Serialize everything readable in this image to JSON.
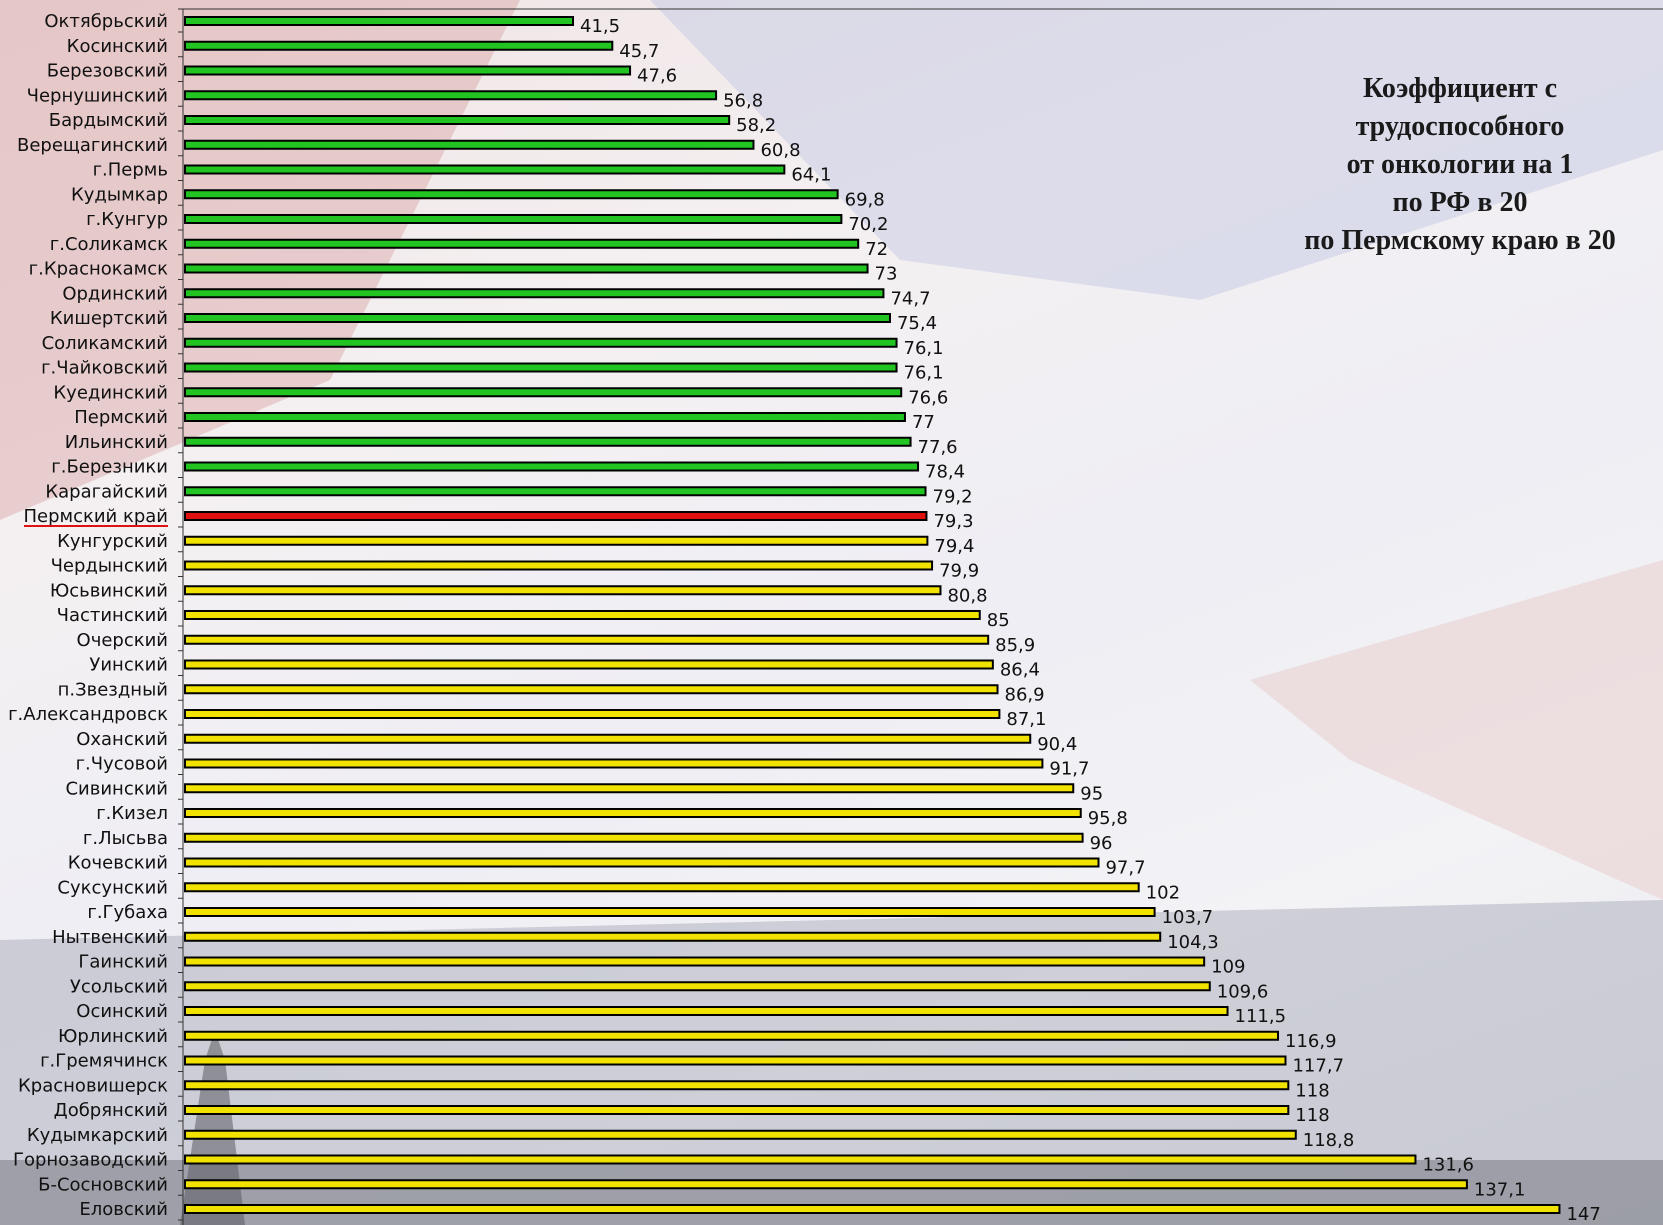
{
  "title_lines": [
    "Коэффициент с",
    "трудоспособного",
    "от онкологии на 1",
    "по РФ в 20",
    "по Пермскому краю в 20"
  ],
  "colors": {
    "normal_low": "#22c422",
    "region_total": "#e01010",
    "normal_high": "#f2e200",
    "bar_outline": "#000000"
  },
  "chart_data": {
    "type": "bar",
    "orientation": "horizontal",
    "categories": [
      "Октябрьский",
      "Косинский",
      "Березовский",
      "Чернушинский",
      "Бардымский",
      "Верещагинский",
      "г.Пермь",
      "Кудымкар",
      "г.Кунгур",
      "г.Соликамск",
      "г.Краснокамск",
      "Ординский",
      "Кишертский",
      "Соликамский",
      "г.Чайковский",
      "Куединский",
      "Пермский",
      "Ильинский",
      "г.Березники",
      "Карагайский",
      "Пермский край",
      "Кунгурский",
      "Чердынский",
      "Юсьвинский",
      "Частинский",
      "Очерский",
      "Уинский",
      "п.Звездный",
      "г.Александровск",
      "Оханский",
      "г.Чусовой",
      "Сивинский",
      "г.Кизел",
      "г.Лысьва",
      "Кочевский",
      "Суксунский",
      "г.Губаха",
      "Нытвенский",
      "Гаинский",
      "Усольский",
      "Осинский",
      "Юрлинский",
      "г.Гремячинск",
      "Красновишерск",
      "Добрянский",
      "Кудымкарский",
      "Горнозаводский",
      "Б-Сосновский",
      "Еловский"
    ],
    "values": [
      41.5,
      45.7,
      47.6,
      56.8,
      58.2,
      60.8,
      64.1,
      69.8,
      70.2,
      72,
      73,
      74.7,
      75.4,
      76.1,
      76.1,
      76.6,
      77,
      77.6,
      78.4,
      79.2,
      79.3,
      79.4,
      79.9,
      80.8,
      85,
      85.9,
      86.4,
      86.9,
      87.1,
      90.4,
      91.7,
      95,
      95.8,
      96,
      97.7,
      102,
      103.7,
      104.3,
      109,
      109.6,
      111.5,
      116.9,
      117.7,
      118,
      118,
      118.8,
      131.6,
      137.1,
      147
    ],
    "value_labels": [
      "41,5",
      "45,7",
      "47,6",
      "56,8",
      "58,2",
      "60,8",
      "64,1",
      "69,8",
      "70,2",
      "72",
      "73",
      "74,7",
      "75,4",
      "76,1",
      "76,1",
      "76,6",
      "77",
      "77,6",
      "78,4",
      "79,2",
      "79,3",
      "79,4",
      "79,9",
      "80,8",
      "85",
      "85,9",
      "86,4",
      "86,9",
      "87,1",
      "90,4",
      "91,7",
      "95",
      "95,8",
      "96",
      "97,7",
      "102",
      "103,7",
      "104,3",
      "109",
      "109,6",
      "111,5",
      "116,9",
      "117,7",
      "118",
      "118",
      "118,8",
      "131,6",
      "137,1",
      "147"
    ],
    "highlight_category": "Пермский край",
    "color_groups": "green below regional value, red for Пермский край, yellow above",
    "xlim": [
      0,
      147
    ]
  }
}
